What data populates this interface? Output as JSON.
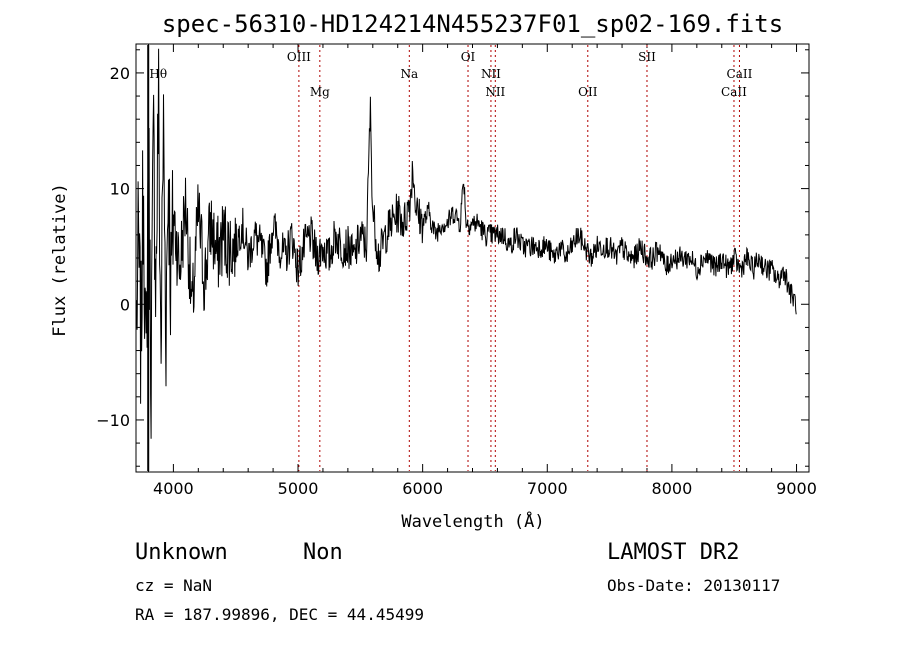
{
  "chart_data": {
    "type": "line",
    "title": "spec-56310-HD124214N455237F01_sp02-169.fits",
    "xlabel": "Wavelength (Å)",
    "ylabel": "Flux (relative)",
    "xlim": [
      3700,
      9100
    ],
    "ylim": [
      -14.5,
      22.5
    ],
    "xticks": [
      4000,
      5000,
      6000,
      7000,
      8000,
      9000
    ],
    "yticks": [
      -10,
      0,
      10,
      20
    ],
    "grid": false,
    "series": [
      {
        "x": [
          3700,
          3720,
          3740,
          3760,
          3780,
          3800,
          3820,
          3840,
          3860,
          3880,
          3900,
          3920,
          3940,
          3960,
          3980,
          4000,
          4050,
          4100,
          4150,
          4200,
          4250,
          4300,
          4350,
          4400,
          4450,
          4500,
          4550,
          4600,
          4650,
          4700,
          4750,
          4800,
          4850,
          4900,
          4950,
          5000,
          5050,
          5100,
          5150,
          5200,
          5250,
          5300,
          5350,
          5400,
          5450,
          5500,
          5550,
          5580,
          5600,
          5650,
          5700,
          5750,
          5800,
          5850,
          5900,
          5920,
          5950,
          6000,
          6050,
          6100,
          6150,
          6200,
          6250,
          6300,
          6330,
          6350,
          6400,
          6450,
          6500,
          6550,
          6600,
          6650,
          6700,
          6750,
          6800,
          6850,
          6900,
          6950,
          7000,
          7050,
          7100,
          7150,
          7200,
          7250,
          7300,
          7350,
          7400,
          7450,
          7500,
          7550,
          7600,
          7650,
          7700,
          7750,
          7800,
          7850,
          7900,
          7950,
          8000,
          8050,
          8100,
          8150,
          8200,
          8250,
          8300,
          8350,
          8400,
          8450,
          8500,
          8550,
          8600,
          8650,
          8700,
          8750,
          8800,
          8850,
          8900,
          8950,
          9000
        ],
        "y": [
          -3,
          5,
          -4,
          12,
          -8,
          15,
          -6,
          14,
          2,
          18,
          -5,
          16,
          -2,
          12,
          1,
          8,
          3,
          9,
          -1,
          8,
          2,
          7,
          4,
          6,
          5,
          5,
          7,
          4,
          6,
          5,
          3,
          7,
          5,
          4,
          6,
          3,
          5,
          6,
          4,
          5,
          4,
          6,
          5,
          5,
          4,
          6,
          5,
          17,
          8,
          4,
          6,
          7,
          8,
          7,
          9,
          12,
          8,
          7,
          8,
          6,
          7,
          7,
          8,
          7,
          11,
          7,
          7,
          7,
          6,
          6,
          6,
          6,
          5,
          6,
          5,
          5,
          5,
          5,
          5,
          4,
          5,
          4,
          5,
          6,
          5,
          4,
          5,
          5,
          5,
          4,
          5,
          4,
          4,
          5,
          4,
          4,
          5,
          3,
          4,
          4,
          4,
          4,
          3,
          4,
          4,
          3,
          4,
          3,
          4,
          3,
          4,
          3,
          4,
          3,
          3,
          2,
          3,
          1,
          0
        ]
      }
    ],
    "lines": [
      {
        "label": "Hθ",
        "x": 3798
      },
      {
        "label": "OIII",
        "x": 5007
      },
      {
        "label": "Mg",
        "x": 5175
      },
      {
        "label": "Na",
        "x": 5893
      },
      {
        "label": "OI",
        "x": 6364
      },
      {
        "label": "NII",
        "x": 6548
      },
      {
        "label": "NII",
        "x": 6583
      },
      {
        "label": "OII",
        "x": 7325
      },
      {
        "label": "SII",
        "x": 7800
      },
      {
        "label": "CaII",
        "x": 8498
      },
      {
        "label": "CaII",
        "x": 8542
      }
    ]
  },
  "info": {
    "class": "Unknown",
    "subclass": "Non",
    "survey": "LAMOST DR2",
    "cz": "cz = NaN",
    "obs_date": "Obs-Date: 20130117",
    "coords": "RA = 187.99896, DEC =  44.45499"
  }
}
